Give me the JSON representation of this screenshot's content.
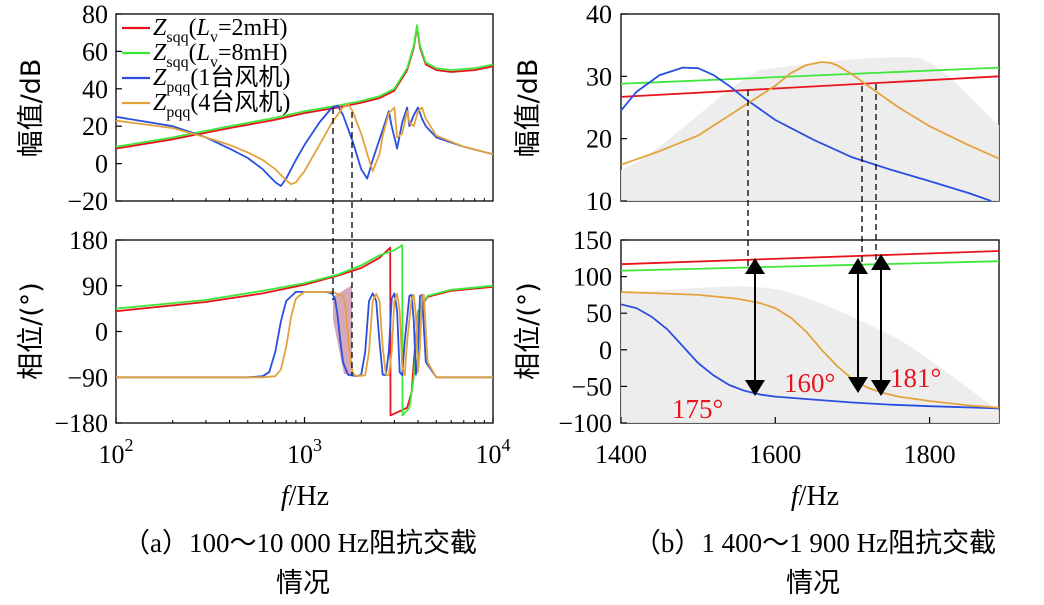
{
  "chart_data": [
    {
      "id": "a_mag",
      "type": "line",
      "ylabel": "幅值/dB",
      "xscale": "log",
      "xlim": [
        100,
        10000
      ],
      "ylim": [
        -20,
        80
      ],
      "yticks": [
        "80",
        "60",
        "40",
        "20",
        "0",
        "−20"
      ],
      "ytick_values": [
        80,
        60,
        40,
        20,
        0,
        -20
      ],
      "legend": {
        "position": "top-left",
        "entries": [
          {
            "main": "Z",
            "sub": "sqq",
            "tail": "(",
            "ital": "L",
            "isub": "v",
            "end": "=2mH)",
            "color": "#e8141c"
          },
          {
            "main": "Z",
            "sub": "sqq",
            "tail": "(",
            "ital": "L",
            "isub": "v",
            "end": "=8mH)",
            "color": "#3ee83a"
          },
          {
            "main": "Z",
            "sub": "pqq",
            "tail": "(1台风机)",
            "ital": "",
            "isub": "",
            "end": "",
            "color": "#2a4fe0"
          },
          {
            "main": "Z",
            "sub": "pqq",
            "tail": "(4台风机)",
            "ital": "",
            "isub": "",
            "end": "",
            "color": "#e3a33c"
          }
        ]
      },
      "series": [
        {
          "name": "Zsqq(Lv=2mH)",
          "color": "#e8141c",
          "x": [
            100,
            200,
            400,
            700,
            1000,
            1500,
            2000,
            2500,
            3000,
            3500,
            3800,
            3950,
            4100,
            4400,
            5000,
            6000,
            8000,
            10000
          ],
          "y": [
            8,
            13,
            19,
            23.5,
            27,
            30,
            32.5,
            35,
            39,
            50,
            62,
            73,
            62,
            53,
            50,
            49,
            50,
            52
          ]
        },
        {
          "name": "Zsqq(Lv=8mH)",
          "color": "#3ee83a",
          "x": [
            100,
            200,
            400,
            700,
            1000,
            1500,
            2000,
            2500,
            3000,
            3500,
            3800,
            3950,
            4100,
            4400,
            5000,
            6000,
            8000,
            10000
          ],
          "y": [
            9,
            14,
            20,
            24.5,
            28,
            31,
            33.5,
            36,
            40,
            51,
            63,
            74,
            63,
            54,
            51,
            50,
            51,
            53
          ]
        },
        {
          "name": "Zpqq(1台风机)",
          "color": "#2a4fe0",
          "x": [
            100,
            200,
            300,
            400,
            500,
            600,
            700,
            750,
            800,
            900,
            1000,
            1200,
            1400,
            1500,
            1600,
            1800,
            2000,
            2150,
            2300,
            2600,
            2800,
            2900,
            3100,
            3300,
            3500,
            3600,
            3800,
            4000,
            4200,
            4400,
            5000,
            7000,
            10000
          ],
          "y": [
            25,
            20,
            14,
            8,
            3,
            -3,
            -10,
            -12,
            -8,
            2,
            10,
            22,
            30,
            31,
            26,
            12,
            -3,
            -8,
            2,
            18,
            28,
            20,
            8,
            22,
            30,
            20,
            26,
            30,
            24,
            20,
            14,
            9,
            5
          ]
        },
        {
          "name": "Zpqq(4台风机)",
          "color": "#e3a33c",
          "x": [
            100,
            200,
            300,
            400,
            500,
            600,
            700,
            800,
            850,
            900,
            1000,
            1200,
            1400,
            1600,
            1700,
            1800,
            2000,
            2200,
            2300,
            2500,
            2600,
            2800,
            3000,
            3100,
            3300,
            3500,
            3600,
            3800,
            4000,
            4200,
            4400,
            5000,
            7000,
            10000
          ],
          "y": [
            23,
            19,
            14,
            10,
            6,
            2,
            -3,
            -9,
            -11,
            -10,
            -4,
            10,
            22,
            30,
            32,
            28,
            16,
            2,
            -4,
            5,
            15,
            27,
            30,
            14,
            16,
            28,
            22,
            20,
            28,
            30,
            24,
            15,
            9,
            5
          ]
        }
      ]
    },
    {
      "id": "a_phase",
      "type": "line",
      "ylabel": "相位/(°)",
      "xscale": "log",
      "xlim": [
        100,
        10000
      ],
      "ylim": [
        -180,
        180
      ],
      "yticks": [
        "180",
        "90",
        "0",
        "−90",
        "−180"
      ],
      "ytick_values": [
        180,
        90,
        0,
        -90,
        -180
      ],
      "xticks": [
        {
          "base": "10",
          "exp": "2",
          "value": 100
        },
        {
          "base": "10",
          "exp": "3",
          "value": 1000
        },
        {
          "base": "10",
          "exp": "4",
          "value": 10000
        }
      ],
      "xlabel": {
        "ital": "f",
        "rest": "/Hz"
      },
      "caption": [
        "（a）100～10 000 Hz阻抗交截",
        "情况"
      ],
      "series": [
        {
          "name": "Zsqq(Lv=2mH)",
          "color": "#e8141c",
          "x": [
            100,
            300,
            600,
            1000,
            1500,
            2000,
            2500,
            2850,
            2860,
            3500,
            3700,
            3800,
            4000,
            4500,
            6000,
            10000
          ],
          "y": [
            40,
            58,
            75,
            92,
            110,
            125,
            145,
            165,
            -165,
            -150,
            -120,
            -60,
            40,
            68,
            80,
            88
          ]
        },
        {
          "name": "Zsqq(Lv=8mH)",
          "color": "#3ee83a",
          "x": [
            100,
            300,
            600,
            1000,
            1500,
            2000,
            2500,
            3000,
            3300,
            3310,
            3600,
            3800,
            4000,
            4500,
            6000,
            10000
          ],
          "y": [
            45,
            62,
            80,
            95,
            112,
            130,
            150,
            160,
            170,
            -165,
            -150,
            -90,
            40,
            70,
            82,
            90
          ]
        },
        {
          "name": "Zpqq(1台风机)",
          "color": "#2a4fe0",
          "x": [
            100,
            500,
            600,
            650,
            700,
            750,
            800,
            900,
            1100,
            1300,
            1400,
            1450,
            1500,
            1550,
            1600,
            1700,
            1900,
            2000,
            2100,
            2200,
            2300,
            2400,
            2500,
            2600,
            2700,
            2800,
            2900,
            3000,
            3100,
            3200,
            3300,
            3400,
            3600,
            3700,
            3800,
            3900,
            4000,
            4100,
            4200,
            4400,
            5000,
            10000
          ],
          "y": [
            -90,
            -90,
            -88,
            -80,
            -40,
            20,
            60,
            78,
            78,
            78,
            75,
            65,
            30,
            -20,
            -60,
            -85,
            -88,
            -85,
            -40,
            60,
            75,
            60,
            -20,
            -85,
            -86,
            -40,
            65,
            75,
            40,
            -80,
            -86,
            -20,
            70,
            72,
            20,
            -85,
            -40,
            70,
            72,
            -60,
            -90,
            -90
          ]
        },
        {
          "name": "Zpqq(4台风机)",
          "color": "#e3a33c",
          "x": [
            100,
            600,
            700,
            750,
            800,
            850,
            900,
            1000,
            1200,
            1400,
            1600,
            1650,
            1700,
            1750,
            1800,
            1850,
            1900,
            2100,
            2200,
            2300,
            2400,
            2500,
            2600,
            2700,
            2800,
            2900,
            3000,
            3100,
            3200,
            3300,
            3400,
            3500,
            3700,
            3800,
            3900,
            4000,
            4100,
            4200,
            4300,
            4500,
            5000,
            10000
          ],
          "y": [
            -90,
            -90,
            -88,
            -75,
            -30,
            30,
            65,
            78,
            78,
            78,
            70,
            50,
            -10,
            -55,
            -80,
            -86,
            -88,
            -86,
            -40,
            60,
            74,
            60,
            -30,
            -85,
            -86,
            -40,
            60,
            74,
            40,
            -70,
            -86,
            -20,
            65,
            72,
            30,
            -80,
            -30,
            70,
            72,
            -60,
            -90,
            -90
          ]
        }
      ]
    },
    {
      "id": "b_mag",
      "type": "line",
      "ylabel": "幅值/dB",
      "xlim": [
        1400,
        1890
      ],
      "ylim": [
        10,
        40
      ],
      "yticks": [
        "40",
        "30",
        "20",
        "10"
      ],
      "ytick_values": [
        40,
        30,
        20,
        10
      ],
      "series": [
        {
          "name": "Zsqq(Lv=2mH)",
          "color": "#e8141c",
          "x": [
            1400,
            1890
          ],
          "y": [
            26.7,
            30
          ]
        },
        {
          "name": "Zsqq(Lv=8mH)",
          "color": "#3ee83a",
          "x": [
            1400,
            1890
          ],
          "y": [
            28.8,
            31.4
          ]
        },
        {
          "name": "Zpqq(1台风机)",
          "color": "#2a4fe0",
          "x": [
            1400,
            1420,
            1450,
            1480,
            1500,
            1520,
            1540,
            1560,
            1600,
            1650,
            1700,
            1750,
            1800,
            1850,
            1880
          ],
          "y": [
            24.5,
            27.5,
            30.2,
            31.4,
            31.3,
            30.2,
            28.5,
            26.5,
            23,
            19.8,
            17,
            15,
            13.2,
            11.3,
            10
          ]
        },
        {
          "name": "Zpqq(4台风机)",
          "color": "#e3a33c",
          "x": [
            1400,
            1450,
            1500,
            1550,
            1600,
            1620,
            1640,
            1660,
            1670,
            1680,
            1700,
            1720,
            1760,
            1800,
            1850,
            1890
          ],
          "y": [
            15.8,
            18,
            20.5,
            24.5,
            28.5,
            30.5,
            31.8,
            32.3,
            32.2,
            31.8,
            30.3,
            28.5,
            25,
            22,
            19,
            16.8
          ]
        }
      ]
    },
    {
      "id": "b_phase",
      "type": "line",
      "ylabel": "相位/(°)",
      "xlim": [
        1400,
        1890
      ],
      "ylim": [
        -100,
        150
      ],
      "yticks": [
        "150",
        "100",
        "50",
        "0",
        "−50",
        "−100"
      ],
      "ytick_values": [
        150,
        100,
        50,
        0,
        -50,
        -100
      ],
      "xticks": [
        {
          "label": "1400",
          "value": 1400
        },
        {
          "label": "1600",
          "value": 1600
        },
        {
          "label": "1800",
          "value": 1800
        }
      ],
      "xlabel": {
        "ital": "f",
        "rest": "/Hz"
      },
      "caption": [
        "（b）1 400～1 900 Hz阻抗交截",
        "情况"
      ],
      "annotations": [
        {
          "text": "175°",
          "x": 1555
        },
        {
          "text": "160°",
          "x": 1700
        },
        {
          "text": "181°",
          "x": 1720
        }
      ],
      "series": [
        {
          "name": "Zsqq(Lv=2mH)",
          "color": "#e8141c",
          "x": [
            1400,
            1890
          ],
          "y": [
            117,
            135
          ]
        },
        {
          "name": "Zsqq(Lv=8mH)",
          "color": "#3ee83a",
          "x": [
            1400,
            1890
          ],
          "y": [
            108,
            121
          ]
        },
        {
          "name": "Zpqq(1台风机)",
          "color": "#2a4fe0",
          "x": [
            1400,
            1420,
            1440,
            1460,
            1480,
            1500,
            1520,
            1540,
            1560,
            1580,
            1600,
            1650,
            1700,
            1750,
            1800,
            1890
          ],
          "y": [
            62,
            57,
            45,
            28,
            5,
            -18,
            -35,
            -48,
            -56,
            -61,
            -64,
            -68,
            -72,
            -75,
            -77,
            -80
          ]
        },
        {
          "name": "Zpqq(4台风机)",
          "color": "#e3a33c",
          "x": [
            1400,
            1450,
            1500,
            1550,
            1580,
            1600,
            1620,
            1640,
            1660,
            1680,
            1700,
            1720,
            1740,
            1760,
            1800,
            1850,
            1890
          ],
          "y": [
            79,
            77,
            75,
            70,
            64,
            57,
            44,
            25,
            0,
            -22,
            -40,
            -52,
            -59,
            -64,
            -70,
            -76,
            -79
          ]
        }
      ]
    }
  ]
}
